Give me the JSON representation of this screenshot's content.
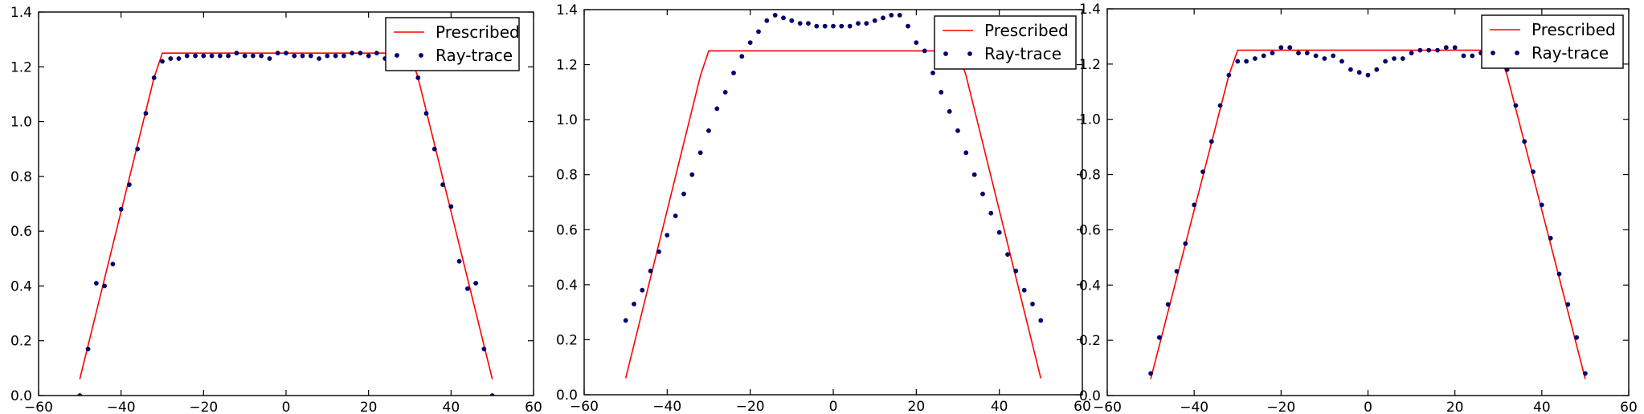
{
  "colors": {
    "prescribed": "#ff0000",
    "raytrace": "#00007f",
    "axes": "#000000",
    "background": "#ffffff"
  },
  "chart_data": [
    {
      "type": "line",
      "title": "",
      "xlabel": "",
      "ylabel": "",
      "xlim": [
        -60,
        60
      ],
      "ylim": [
        0.0,
        1.4
      ],
      "xticks": [
        -60,
        -40,
        -20,
        0,
        20,
        40,
        60
      ],
      "yticks": [
        0.0,
        0.2,
        0.4,
        0.6,
        0.8,
        1.0,
        1.2,
        1.4
      ],
      "xtick_labels": [
        "−60",
        "−40",
        "−20",
        "0",
        "20",
        "40",
        "60"
      ],
      "ytick_labels": [
        "0.0",
        "0.2",
        "0.4",
        "0.6",
        "0.8",
        "1.0",
        "1.2",
        "1.4"
      ],
      "grid": false,
      "legend_position": "top-right",
      "series": [
        {
          "name": "Prescribed",
          "style": "line",
          "color": "#ff0000",
          "x": [
            -50,
            -32,
            -30,
            30,
            32,
            50
          ],
          "y": [
            0.06,
            1.16,
            1.25,
            1.25,
            1.16,
            0.06
          ]
        },
        {
          "name": "Ray-trace",
          "style": "markers",
          "color": "#00007f",
          "x": [
            -50,
            -48,
            -46,
            -44,
            -42,
            -40,
            -38,
            -36,
            -34,
            -32,
            -30,
            -28,
            -26,
            -24,
            -22,
            -20,
            -18,
            -16,
            -14,
            -12,
            -10,
            -8,
            -6,
            -4,
            -2,
            0,
            2,
            4,
            6,
            8,
            10,
            12,
            14,
            16,
            18,
            20,
            22,
            24,
            26,
            28,
            30,
            32,
            34,
            36,
            38,
            40,
            42,
            44,
            46,
            48,
            50
          ],
          "y": [
            0.0,
            0.17,
            0.41,
            0.4,
            0.48,
            0.68,
            0.77,
            0.9,
            1.03,
            1.16,
            1.22,
            1.23,
            1.23,
            1.24,
            1.24,
            1.24,
            1.24,
            1.24,
            1.24,
            1.25,
            1.24,
            1.24,
            1.24,
            1.23,
            1.25,
            1.25,
            1.24,
            1.24,
            1.24,
            1.23,
            1.24,
            1.24,
            1.24,
            1.25,
            1.25,
            1.24,
            1.25,
            1.23,
            1.24,
            1.24,
            1.22,
            1.16,
            1.03,
            0.9,
            0.77,
            0.69,
            0.49,
            0.39,
            0.41,
            0.17,
            0.0
          ]
        }
      ]
    },
    {
      "type": "line",
      "title": "",
      "xlabel": "",
      "ylabel": "",
      "xlim": [
        -60,
        60
      ],
      "ylim": [
        0.0,
        1.4
      ],
      "xticks": [
        -60,
        -40,
        -20,
        0,
        20,
        40,
        60
      ],
      "yticks": [
        0.0,
        0.2,
        0.4,
        0.6,
        0.8,
        1.0,
        1.2,
        1.4
      ],
      "xtick_labels": [
        "−60",
        "−40",
        "−20",
        "0",
        "20",
        "40",
        "60"
      ],
      "ytick_labels": [
        "0.0",
        "0.2",
        "0.4",
        "0.6",
        "0.8",
        "1.0",
        "1.2",
        "1.4"
      ],
      "grid": false,
      "legend_position": "top-right",
      "series": [
        {
          "name": "Prescribed",
          "style": "line",
          "color": "#ff0000",
          "x": [
            -50,
            -32,
            -30,
            30,
            32,
            50
          ],
          "y": [
            0.06,
            1.16,
            1.25,
            1.25,
            1.16,
            0.06
          ]
        },
        {
          "name": "Ray-trace",
          "style": "markers",
          "color": "#00007f",
          "x": [
            -50,
            -48,
            -46,
            -44,
            -42,
            -40,
            -38,
            -36,
            -34,
            -32,
            -30,
            -28,
            -26,
            -24,
            -22,
            -20,
            -18,
            -16,
            -14,
            -12,
            -10,
            -8,
            -6,
            -4,
            -2,
            0,
            2,
            4,
            6,
            8,
            10,
            12,
            14,
            16,
            18,
            20,
            22,
            24,
            26,
            28,
            30,
            32,
            34,
            36,
            38,
            40,
            42,
            44,
            46,
            48,
            50
          ],
          "y": [
            0.27,
            0.33,
            0.38,
            0.45,
            0.52,
            0.58,
            0.65,
            0.73,
            0.8,
            0.88,
            0.96,
            1.04,
            1.1,
            1.17,
            1.23,
            1.28,
            1.32,
            1.36,
            1.38,
            1.37,
            1.36,
            1.35,
            1.35,
            1.34,
            1.34,
            1.34,
            1.34,
            1.34,
            1.35,
            1.35,
            1.36,
            1.37,
            1.38,
            1.38,
            1.34,
            1.28,
            1.25,
            1.17,
            1.1,
            1.03,
            0.96,
            0.88,
            0.8,
            0.73,
            0.66,
            0.59,
            0.51,
            0.45,
            0.38,
            0.33,
            0.27
          ]
        }
      ]
    },
    {
      "type": "line",
      "title": "",
      "xlabel": "",
      "ylabel": "",
      "xlim": [
        -60,
        60
      ],
      "ylim": [
        0.0,
        1.4
      ],
      "xticks": [
        -60,
        -40,
        -20,
        0,
        20,
        40,
        60
      ],
      "yticks": [
        0.0,
        0.2,
        0.4,
        0.6,
        0.8,
        1.0,
        1.2,
        1.4
      ],
      "xtick_labels": [
        "−60",
        "−40",
        "−20",
        "0",
        "20",
        "40",
        "60"
      ],
      "ytick_labels": [
        "0.0",
        "0.2",
        "0.4",
        "0.6",
        "0.8",
        "1.0",
        "1.2",
        "1.4"
      ],
      "grid": false,
      "legend_position": "top-right",
      "series": [
        {
          "name": "Prescribed",
          "style": "line",
          "color": "#ff0000",
          "x": [
            -50,
            -32,
            -30,
            30,
            32,
            50
          ],
          "y": [
            0.06,
            1.16,
            1.25,
            1.25,
            1.16,
            0.06
          ]
        },
        {
          "name": "Ray-trace",
          "style": "markers",
          "color": "#00007f",
          "x": [
            -50,
            -48,
            -46,
            -44,
            -42,
            -40,
            -38,
            -36,
            -34,
            -32,
            -30,
            -28,
            -26,
            -24,
            -22,
            -20,
            -18,
            -16,
            -14,
            -12,
            -10,
            -8,
            -6,
            -4,
            -2,
            0,
            2,
            4,
            6,
            8,
            10,
            12,
            14,
            16,
            18,
            20,
            22,
            24,
            26,
            28,
            30,
            32,
            34,
            36,
            38,
            40,
            42,
            44,
            46,
            48,
            50
          ],
          "y": [
            0.08,
            0.21,
            0.33,
            0.45,
            0.55,
            0.69,
            0.81,
            0.92,
            1.05,
            1.16,
            1.21,
            1.21,
            1.22,
            1.23,
            1.24,
            1.26,
            1.26,
            1.24,
            1.24,
            1.23,
            1.22,
            1.23,
            1.21,
            1.18,
            1.17,
            1.16,
            1.18,
            1.21,
            1.22,
            1.22,
            1.24,
            1.25,
            1.25,
            1.25,
            1.26,
            1.26,
            1.23,
            1.23,
            1.24,
            1.24,
            1.22,
            1.18,
            1.05,
            0.92,
            0.81,
            0.69,
            0.57,
            0.44,
            0.33,
            0.21,
            0.08
          ]
        }
      ]
    }
  ]
}
